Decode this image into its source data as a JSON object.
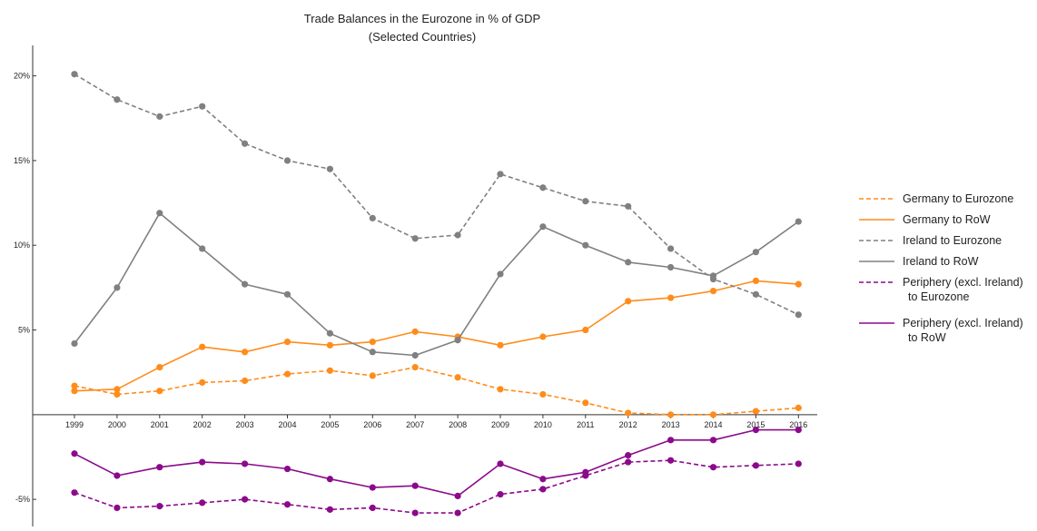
{
  "chart_data": {
    "type": "line",
    "title": "Trade Balances in the Eurozone in % of GDP",
    "subtitle": "(Selected Countries)",
    "xlabel": "",
    "ylabel": "",
    "x": [
      "1999",
      "2000",
      "2001",
      "2002",
      "2003",
      "2004",
      "2005",
      "2006",
      "2007",
      "2008",
      "2009",
      "2010",
      "2011",
      "2012",
      "2013",
      "2014",
      "2015",
      "2016"
    ],
    "ylim": [
      -6.6,
      21.8
    ],
    "y_ticks": [
      {
        "value": 20,
        "label": "20%"
      },
      {
        "value": 15,
        "label": "15%"
      },
      {
        "value": 10,
        "label": "10%"
      },
      {
        "value": 5,
        "label": "5%"
      },
      {
        "value": -5,
        "label": "-5%"
      }
    ],
    "grid": false,
    "legend_position": "right",
    "series": [
      {
        "name": "Germany to Eurozone",
        "color": "#ff8c1a",
        "dash": true,
        "values": [
          1.7,
          1.2,
          1.4,
          1.9,
          2.0,
          2.4,
          2.6,
          2.3,
          2.8,
          2.2,
          1.5,
          1.2,
          0.7,
          0.1,
          0.0,
          0.0,
          0.2,
          0.4
        ]
      },
      {
        "name": "Germany to RoW",
        "color": "#ff8c1a",
        "dash": false,
        "values": [
          1.4,
          1.5,
          2.8,
          4.0,
          3.7,
          4.3,
          4.1,
          4.3,
          4.9,
          4.6,
          4.1,
          4.6,
          5.0,
          6.7,
          6.9,
          7.3,
          7.9,
          7.7
        ]
      },
      {
        "name": "Ireland to Eurozone",
        "color": "#808080",
        "dash": true,
        "values": [
          20.1,
          18.6,
          17.6,
          18.2,
          16.0,
          15.0,
          14.5,
          11.6,
          10.4,
          10.6,
          14.2,
          13.4,
          12.6,
          12.3,
          9.8,
          8.0,
          7.1,
          5.9
        ]
      },
      {
        "name": "Ireland to RoW",
        "color": "#808080",
        "dash": false,
        "values": [
          4.2,
          7.5,
          11.9,
          9.8,
          7.7,
          7.1,
          4.8,
          3.7,
          3.5,
          4.4,
          8.3,
          11.1,
          10.0,
          9.0,
          8.7,
          8.2,
          9.6,
          11.4
        ]
      },
      {
        "name": "Periphery (excl. Ireland)\nto Eurozone",
        "color": "#8b0a8b",
        "dash": true,
        "values": [
          -4.6,
          -5.5,
          -5.4,
          -5.2,
          -5.0,
          -5.3,
          -5.6,
          -5.5,
          -5.8,
          -5.8,
          -4.7,
          -4.4,
          -3.6,
          -2.8,
          -2.7,
          -3.1,
          -3.0,
          -2.9
        ]
      },
      {
        "name": "Periphery (excl. Ireland)\nto RoW",
        "color": "#8b0a8b",
        "dash": false,
        "values": [
          -2.3,
          -3.6,
          -3.1,
          -2.8,
          -2.9,
          -3.2,
          -3.8,
          -4.3,
          -4.2,
          -4.8,
          -2.9,
          -3.8,
          -3.4,
          -2.4,
          -1.5,
          -1.5,
          -0.9,
          -0.9
        ]
      }
    ]
  }
}
